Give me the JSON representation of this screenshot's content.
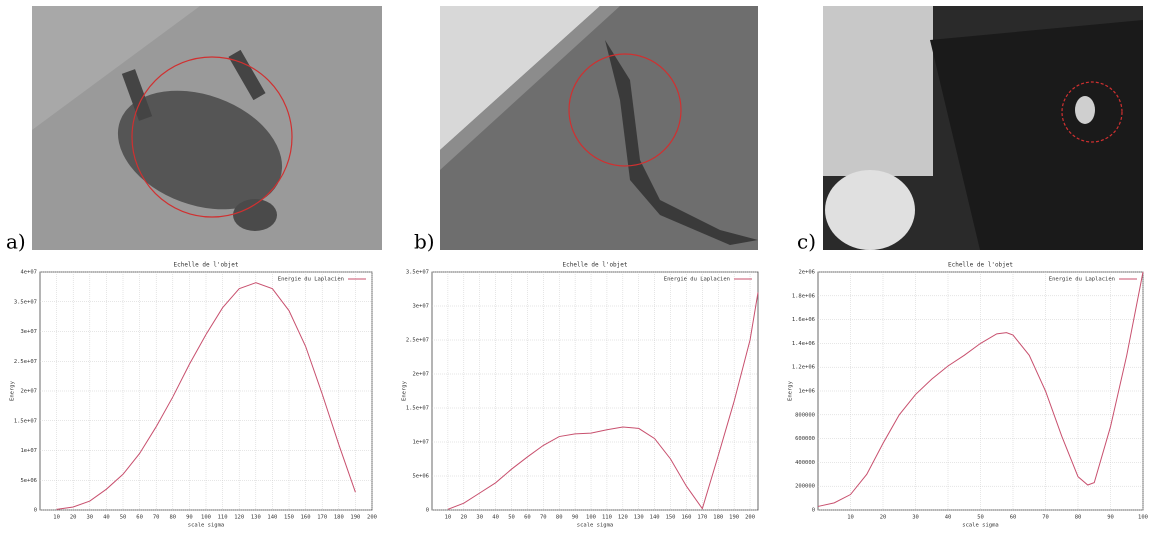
{
  "panels": [
    {
      "label": "a)"
    },
    {
      "label": "b)"
    },
    {
      "label": "c)"
    }
  ],
  "chart_data": [
    {
      "type": "line",
      "title": "Echelle de l'objet",
      "xlabel": "scale sigma",
      "ylabel": "Energy",
      "grid": true,
      "legend": "top-right",
      "x": [
        10,
        20,
        30,
        40,
        50,
        60,
        70,
        80,
        90,
        100,
        110,
        120,
        130,
        140,
        150,
        160,
        170,
        180,
        190
      ],
      "series": [
        {
          "name": "Energie du Laplacien",
          "color": "#c8506e",
          "values": [
            100000,
            500000,
            1500000,
            3500000,
            6000000,
            9500000,
            14000000,
            19000000,
            24500000,
            29500000,
            34000000,
            37200000,
            38200000,
            37200000,
            33500000,
            27500000,
            19500000,
            11000000,
            3000000
          ]
        }
      ],
      "xlim": [
        0,
        200
      ],
      "xticks": [
        10,
        20,
        30,
        40,
        50,
        60,
        70,
        80,
        90,
        100,
        110,
        120,
        130,
        140,
        150,
        160,
        170,
        180,
        190,
        200
      ],
      "ylim": [
        0,
        40000000
      ],
      "yticks": [
        0,
        {
          "value": 5000000,
          "label": "5e+06"
        },
        {
          "value": 10000000,
          "label": "1e+07"
        },
        {
          "value": 15000000,
          "label": "1.5e+07"
        },
        {
          "value": 20000000,
          "label": "2e+07"
        },
        {
          "value": 25000000,
          "label": "2.5e+07"
        },
        {
          "value": 30000000,
          "label": "3e+07"
        },
        {
          "value": 35000000,
          "label": "3.5e+07"
        },
        {
          "value": 40000000,
          "label": "4e+07"
        }
      ]
    },
    {
      "type": "line",
      "title": "Echelle de l'objet",
      "xlabel": "scale sigma",
      "ylabel": "Energy",
      "grid": true,
      "legend": "top-right",
      "x": [
        10,
        20,
        30,
        40,
        50,
        60,
        70,
        80,
        90,
        100,
        110,
        120,
        130,
        140,
        150,
        160,
        170,
        180,
        190,
        200,
        205
      ],
      "series": [
        {
          "name": "Energie du Laplacien",
          "color": "#c8506e",
          "values": [
            100000,
            1000000,
            2500000,
            4000000,
            6000000,
            7800000,
            9500000,
            10800000,
            11200000,
            11300000,
            11800000,
            12200000,
            12000000,
            10500000,
            7500000,
            3500000,
            200000,
            8000000,
            16000000,
            25000000,
            32000000
          ]
        }
      ],
      "xlim": [
        0,
        205
      ],
      "xticks": [
        10,
        20,
        30,
        40,
        50,
        60,
        70,
        80,
        90,
        100,
        110,
        120,
        130,
        140,
        150,
        160,
        170,
        180,
        190,
        200
      ],
      "ylim": [
        0,
        35000000
      ],
      "yticks": [
        0,
        {
          "value": 5000000,
          "label": "5e+06"
        },
        {
          "value": 10000000,
          "label": "1e+07"
        },
        {
          "value": 15000000,
          "label": "1.5e+07"
        },
        {
          "value": 20000000,
          "label": "2e+07"
        },
        {
          "value": 25000000,
          "label": "2.5e+07"
        },
        {
          "value": 30000000,
          "label": "3e+07"
        },
        {
          "value": 35000000,
          "label": "3.5e+07"
        }
      ]
    },
    {
      "type": "line",
      "title": "Echelle de l'objet",
      "xlabel": "scale sigma",
      "ylabel": "Energy",
      "grid": true,
      "legend": "top-right",
      "x": [
        0,
        5,
        10,
        15,
        20,
        25,
        30,
        35,
        40,
        45,
        50,
        55,
        58,
        60,
        65,
        70,
        75,
        80,
        83,
        85,
        90,
        95,
        100
      ],
      "series": [
        {
          "name": "Energie du Laplacien",
          "color": "#c8506e",
          "values": [
            30000,
            60000,
            130000,
            300000,
            560000,
            800000,
            970000,
            1100000,
            1210000,
            1300000,
            1400000,
            1480000,
            1490000,
            1470000,
            1300000,
            1000000,
            620000,
            280000,
            210000,
            230000,
            700000,
            1300000,
            2000000
          ]
        }
      ],
      "xlim": [
        0,
        100
      ],
      "xticks": [
        10,
        20,
        30,
        40,
        50,
        60,
        70,
        80,
        90,
        100
      ],
      "ylim": [
        0,
        2000000
      ],
      "yticks": [
        0,
        200000,
        400000,
        600000,
        800000,
        {
          "value": 1000000,
          "label": "1e+06"
        },
        {
          "value": 1200000,
          "label": "1.2e+06"
        },
        {
          "value": 1400000,
          "label": "1.4e+06"
        },
        {
          "value": 1600000,
          "label": "1.6e+06"
        },
        {
          "value": 1800000,
          "label": "1.8e+06"
        },
        {
          "value": 2000000,
          "label": "2e+06"
        }
      ]
    }
  ]
}
